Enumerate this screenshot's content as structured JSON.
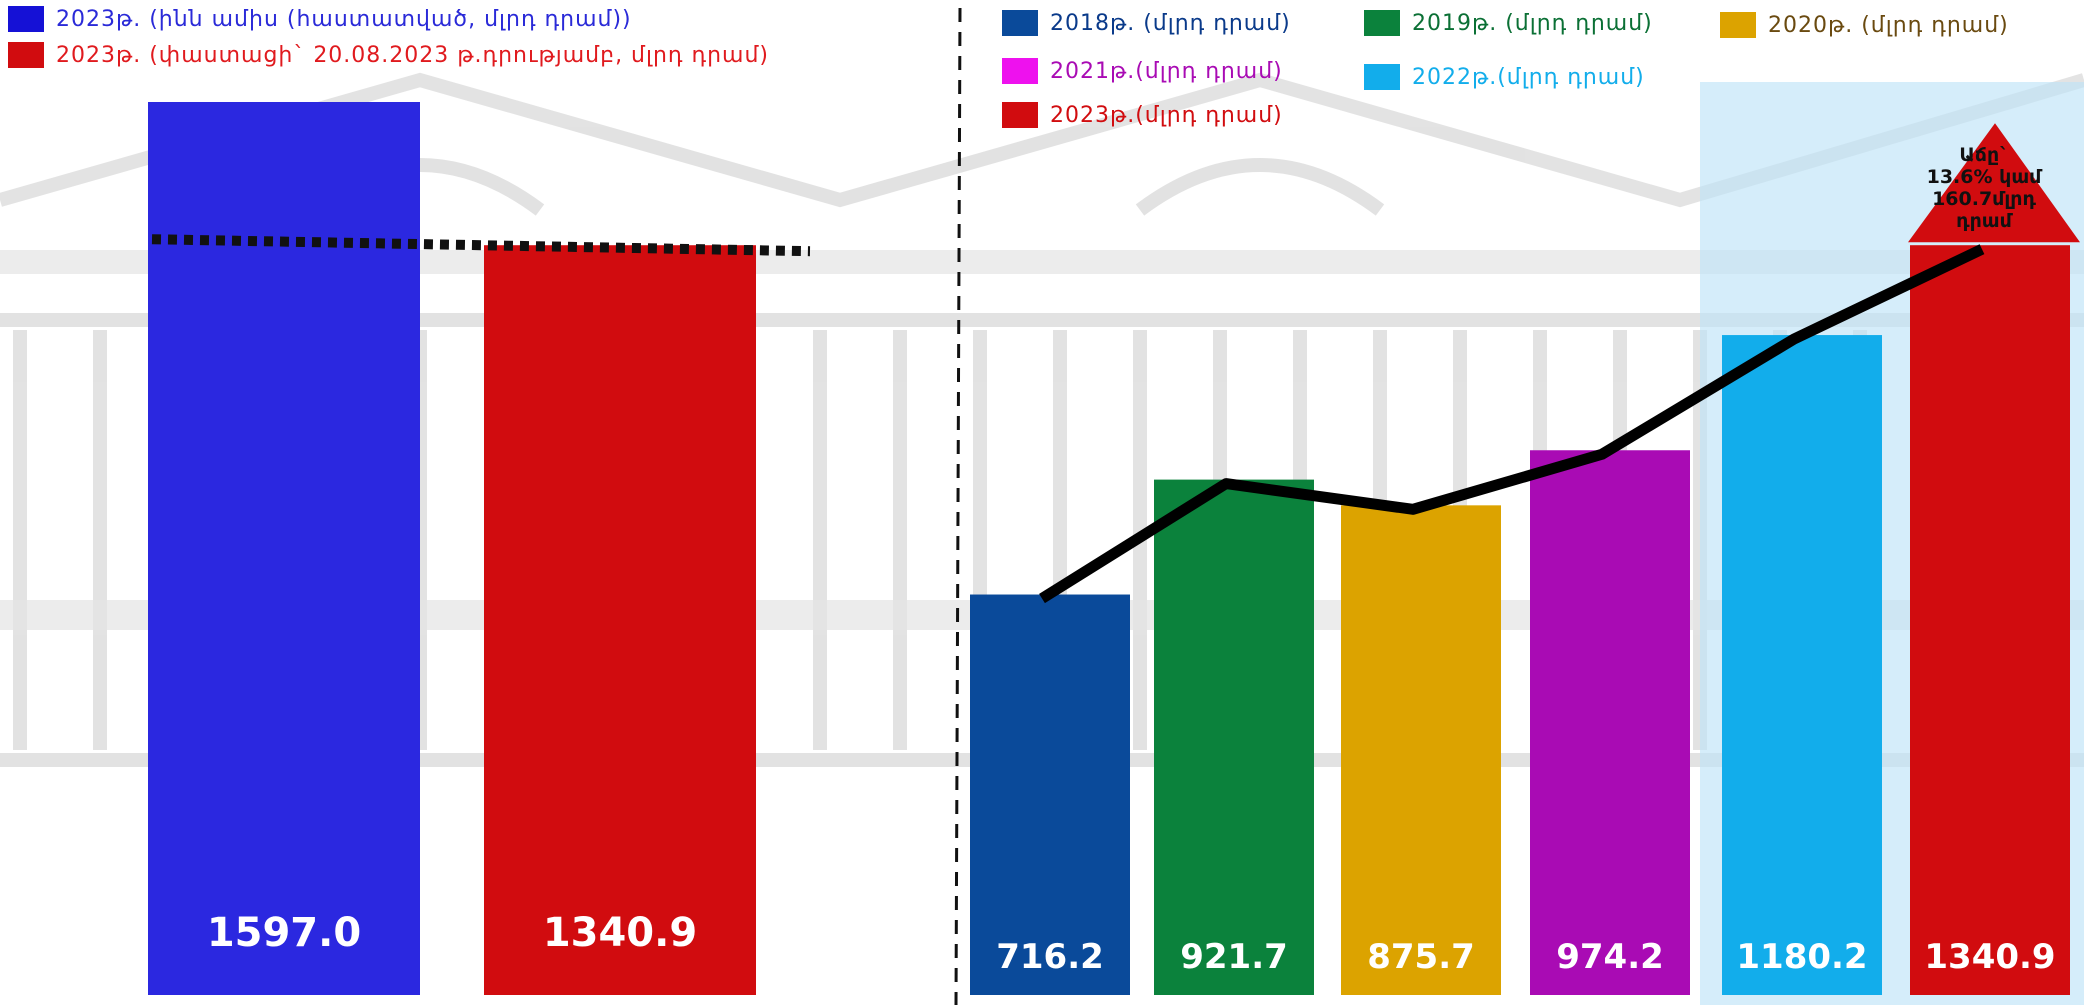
{
  "colors": {
    "blue_2023_9m": "#2b28e0",
    "red_2023": "#d10c0f",
    "c2018": "#0a4a9a",
    "c2019": "#0b823c",
    "c2020": "#dca300",
    "c2021": "#a90bb4",
    "c2022": "#12adeb",
    "c2021_legend": "#ee11ee",
    "highlight": "#bfe4f7"
  },
  "left_legend": [
    {
      "label": "2023թ. (ինն ամիս (հաստատված, մլրդ դրամ))",
      "color": "#1511d6",
      "text_color": "#2a2ad8"
    },
    {
      "label": "2023թ. (փաստացի` 20.08.2023 թ.դրությամբ, մլրդ դրամ)",
      "color": "#d10c0f",
      "text_color": "#e01a1e"
    }
  ],
  "right_legend": [
    {
      "label": "2018թ. (մլրդ դրամ)",
      "color": "#0a4a9a",
      "text_color": "#0a3a8a"
    },
    {
      "label": "2019թ. (մլրդ դրամ)",
      "color": "#0b823c",
      "text_color": "#0b7035"
    },
    {
      "label": "2020թ. (մլրդ դրամ)",
      "color": "#dca300",
      "text_color": "#6a4a10"
    },
    {
      "label": "2021թ.(մլրդ դրամ)",
      "color": "#ee11ee",
      "text_color": "#a90bb4"
    },
    {
      "label": "2022թ.(մլրդ դրամ)",
      "color": "#12adeb",
      "text_color": "#12adeb"
    },
    {
      "label": "2023թ.(մլրդ դրամ)",
      "color": "#d10c0f",
      "text_color": "#d10c0f"
    }
  ],
  "chart_data": [
    {
      "type": "bar",
      "categories": [
        "2023թ. (ինն ամիս (հաստատված, մլրդ դրամ))",
        "2023թ. (փաստացի` 20.08.2023 թ.դրությամբ, մլրդ դրամ)"
      ],
      "values": [
        1597.0,
        1340.9
      ],
      "value_labels": [
        "1597.0",
        "1340.9"
      ],
      "ylim": [
        0,
        1597.0
      ],
      "legend_placement": "top-left",
      "reference_line": {
        "style": "dotted",
        "value": 1340.9
      }
    },
    {
      "type": "bar",
      "categories": [
        "2018թ.(մլրդ դրամ)",
        "2019թ.(մլրդ դրամ)",
        "2020թ.(մլրդ դրամ)",
        "2021թ.(մլրդ դրամ)",
        "2022թ.(մլրդ դրամ)",
        "2023թ.(մլրդ դրամ)"
      ],
      "values": [
        716.2,
        921.7,
        875.7,
        974.2,
        1180.2,
        1340.9
      ],
      "value_labels": [
        "716.2",
        "921.7",
        "875.7",
        "974.2",
        "1180.2",
        "1340.9"
      ],
      "ylim": [
        0,
        1597.0
      ],
      "legend_placement": "top",
      "trend_line": true,
      "annotation": {
        "lines": [
          "Աճը`",
          "13.6% կամ",
          "160.7մլրդ",
          "դրամ"
        ],
        "arrow": "up"
      }
    }
  ]
}
